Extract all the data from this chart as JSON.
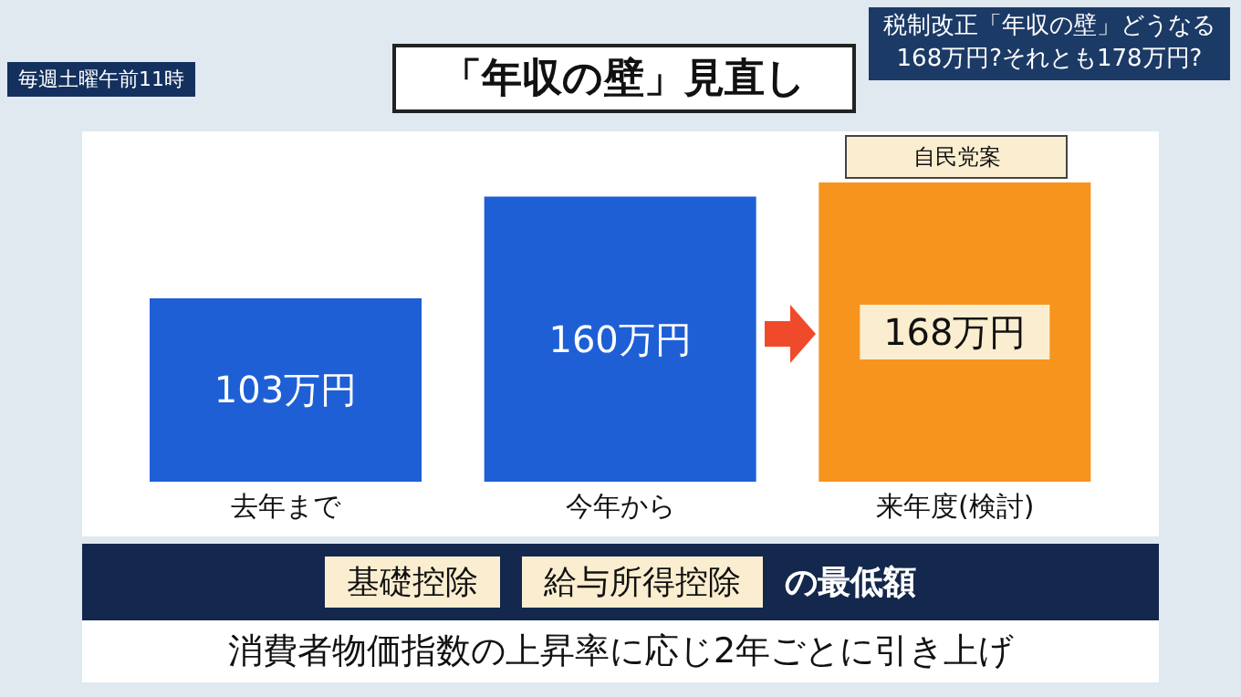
{
  "chart_data": {
    "type": "bar",
    "title": "「年収の壁」見直し",
    "subtitle": "税制改正「年収の壁」どうなる\n168万円?それとも178万円?",
    "categories": [
      "去年まで",
      "今年から",
      "来年度(検討)"
    ],
    "values": [
      103,
      160,
      168
    ],
    "colors": [
      "#1f5fd6",
      "#1f5fd6",
      "#f7941d"
    ],
    "value_labels": [
      "103万円",
      "160万円",
      "168万円"
    ],
    "annotations": [
      "自民党案",
      "毎週土曜午前11時",
      "基礎控除",
      "給与所得控除",
      "の最低額",
      "消費者物価指数の上昇率に応じ2年ごとに引き上げ"
    ],
    "grid": false,
    "legend": false
  }
}
